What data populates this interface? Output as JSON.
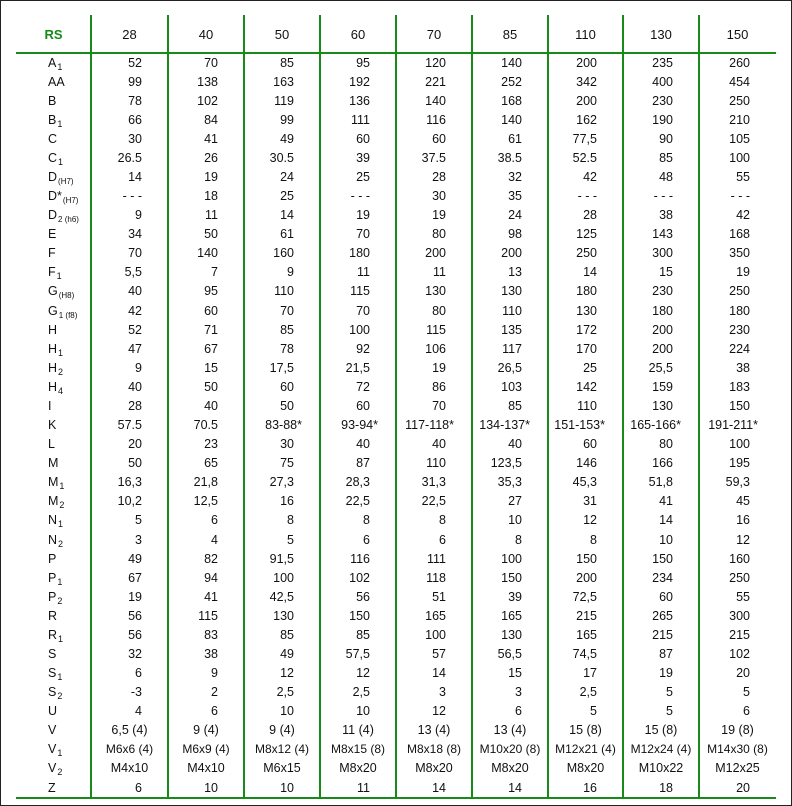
{
  "header": {
    "label": "RS",
    "sizes": [
      "28",
      "40",
      "50",
      "60",
      "70",
      "85",
      "110",
      "130",
      "150"
    ]
  },
  "colors": {
    "accent": "#178a17"
  },
  "rows": [
    {
      "label": "A",
      "sub": "1",
      "values": [
        "52",
        "70",
        "85",
        "95",
        "120",
        "140",
        "200",
        "235",
        "260"
      ]
    },
    {
      "label": "AA",
      "sub": "",
      "values": [
        "99",
        "138",
        "163",
        "192",
        "221",
        "252",
        "342",
        "400",
        "454"
      ]
    },
    {
      "label": "B",
      "sub": "",
      "values": [
        "78",
        "102",
        "119",
        "136",
        "140",
        "168",
        "200",
        "230",
        "250"
      ]
    },
    {
      "label": "B",
      "sub": "1",
      "values": [
        "66",
        "84",
        "99",
        "111",
        "116",
        "140",
        "162",
        "190",
        "210"
      ]
    },
    {
      "label": "C",
      "sub": "",
      "values": [
        "30",
        "41",
        "49",
        "60",
        "60",
        "61",
        "77,5",
        "90",
        "105"
      ]
    },
    {
      "label": "C",
      "sub": "1",
      "values": [
        "26.5",
        "26",
        "30.5",
        "39",
        "37.5",
        "38.5",
        "52.5",
        "85",
        "100"
      ]
    },
    {
      "label": "D",
      "sub": "(H7)",
      "values": [
        "14",
        "19",
        "24",
        "25",
        "28",
        "32",
        "42",
        "48",
        "55"
      ]
    },
    {
      "label": "D*",
      "sub": "(H7)",
      "values": [
        "- - -",
        "18",
        "25",
        "- - -",
        "30",
        "35",
        "- - -",
        "- - -",
        "- - -"
      ]
    },
    {
      "label": "D",
      "sub": "2 (h6)",
      "values": [
        "9",
        "11",
        "14",
        "19",
        "19",
        "24",
        "28",
        "38",
        "42"
      ]
    },
    {
      "label": "E",
      "sub": "",
      "values": [
        "34",
        "50",
        "61",
        "70",
        "80",
        "98",
        "125",
        "143",
        "168"
      ]
    },
    {
      "label": "F",
      "sub": "",
      "values": [
        "70",
        "140",
        "160",
        "180",
        "200",
        "200",
        "250",
        "300",
        "350"
      ]
    },
    {
      "label": "F",
      "sub": "1",
      "values": [
        "5,5",
        "7",
        "9",
        "11",
        "11",
        "13",
        "14",
        "15",
        "19"
      ]
    },
    {
      "label": "G",
      "sub": "(H8)",
      "values": [
        "40",
        "95",
        "110",
        "115",
        "130",
        "130",
        "180",
        "230",
        "250"
      ]
    },
    {
      "label": "G",
      "sub": "1 (f8)",
      "values": [
        "42",
        "60",
        "70",
        "70",
        "80",
        "110",
        "130",
        "180",
        "180"
      ]
    },
    {
      "label": "H",
      "sub": "",
      "values": [
        "52",
        "71",
        "85",
        "100",
        "115",
        "135",
        "172",
        "200",
        "230"
      ]
    },
    {
      "label": "H",
      "sub": "1",
      "values": [
        "47",
        "67",
        "78",
        "92",
        "106",
        "117",
        "170",
        "200",
        "224"
      ]
    },
    {
      "label": "H",
      "sub": "2",
      "values": [
        "9",
        "15",
        "17,5",
        "21,5",
        "19",
        "26,5",
        "25",
        "25,5",
        "38"
      ]
    },
    {
      "label": "H",
      "sub": "4",
      "values": [
        "40",
        "50",
        "60",
        "72",
        "86",
        "103",
        "142",
        "159",
        "183"
      ]
    },
    {
      "label": "I",
      "sub": "",
      "values": [
        "28",
        "40",
        "50",
        "60",
        "70",
        "85",
        "110",
        "130",
        "150"
      ]
    },
    {
      "label": "K",
      "sub": "",
      "values": [
        "57.5",
        "70.5",
        "83-88*",
        "93-94*",
        "117-118*",
        "134-137*",
        "151-153*",
        "165-166*",
        "191-211*"
      ]
    },
    {
      "label": "L",
      "sub": "",
      "values": [
        "20",
        "23",
        "30",
        "40",
        "40",
        "40",
        "60",
        "80",
        "100"
      ]
    },
    {
      "label": "M",
      "sub": "",
      "values": [
        "50",
        "65",
        "75",
        "87",
        "110",
        "123,5",
        "146",
        "166",
        "195"
      ]
    },
    {
      "label": "M",
      "sub": "1",
      "values": [
        "16,3",
        "21,8",
        "27,3",
        "28,3",
        "31,3",
        "35,3",
        "45,3",
        "51,8",
        "59,3"
      ]
    },
    {
      "label": "M",
      "sub": "2",
      "values": [
        "10,2",
        "12,5",
        "16",
        "22,5",
        "22,5",
        "27",
        "31",
        "41",
        "45"
      ]
    },
    {
      "label": "N",
      "sub": "1",
      "values": [
        "5",
        "6",
        "8",
        "8",
        "8",
        "10",
        "12",
        "14",
        "16"
      ]
    },
    {
      "label": "N",
      "sub": "2",
      "values": [
        "3",
        "4",
        "5",
        "6",
        "6",
        "8",
        "8",
        "10",
        "12"
      ]
    },
    {
      "label": "P",
      "sub": "",
      "values": [
        "49",
        "82",
        "91,5",
        "116",
        "111",
        "100",
        "150",
        "150",
        "160"
      ]
    },
    {
      "label": "P",
      "sub": "1",
      "values": [
        "67",
        "94",
        "100",
        "102",
        "118",
        "150",
        "200",
        "234",
        "250"
      ]
    },
    {
      "label": "P",
      "sub": "2",
      "values": [
        "19",
        "41",
        "42,5",
        "56",
        "51",
        "39",
        "72,5",
        "60",
        "55"
      ]
    },
    {
      "label": "R",
      "sub": "",
      "values": [
        "56",
        "115",
        "130",
        "150",
        "165",
        "165",
        "215",
        "265",
        "300"
      ]
    },
    {
      "label": "R",
      "sub": "1",
      "values": [
        "56",
        "83",
        "85",
        "85",
        "100",
        "130",
        "165",
        "215",
        "215"
      ]
    },
    {
      "label": "S",
      "sub": "",
      "values": [
        "32",
        "38",
        "49",
        "57,5",
        "57",
        "56,5",
        "74,5",
        "87",
        "102"
      ]
    },
    {
      "label": "S",
      "sub": "1",
      "values": [
        "6",
        "9",
        "12",
        "12",
        "14",
        "15",
        "17",
        "19",
        "20"
      ]
    },
    {
      "label": "S",
      "sub": "2",
      "values": [
        "-3",
        "2",
        "2,5",
        "2,5",
        "3",
        "3",
        "2,5",
        "5",
        "5"
      ]
    },
    {
      "label": "U",
      "sub": "",
      "values": [
        "4",
        "6",
        "10",
        "10",
        "12",
        "6",
        "5",
        "5",
        "6"
      ]
    },
    {
      "label": "V",
      "sub": "",
      "values": [
        "6,5 (4)",
        "9 (4)",
        "9 (4)",
        "11 (4)",
        "13 (4)",
        "13 (4)",
        "15 (8)",
        "15 (8)",
        "19 (8)"
      ]
    },
    {
      "label": "V",
      "sub": "1",
      "values": [
        "M6x6 (4)",
        "M6x9 (4)",
        "M8x12 (4)",
        "M8x15 (8)",
        "M8x18 (8)",
        "M10x20 (8)",
        "M12x21 (4)",
        "M12x24 (4)",
        "M14x30 (8)"
      ]
    },
    {
      "label": "V",
      "sub": "2",
      "values": [
        "M4x10",
        "M4x10",
        "M6x15",
        "M8x20",
        "M8x20",
        "M8x20",
        "M8x20",
        "M10x22",
        "M12x25"
      ]
    },
    {
      "label": "Z",
      "sub": "",
      "values": [
        "6",
        "10",
        "10",
        "11",
        "14",
        "14",
        "16",
        "18",
        "20"
      ]
    }
  ]
}
